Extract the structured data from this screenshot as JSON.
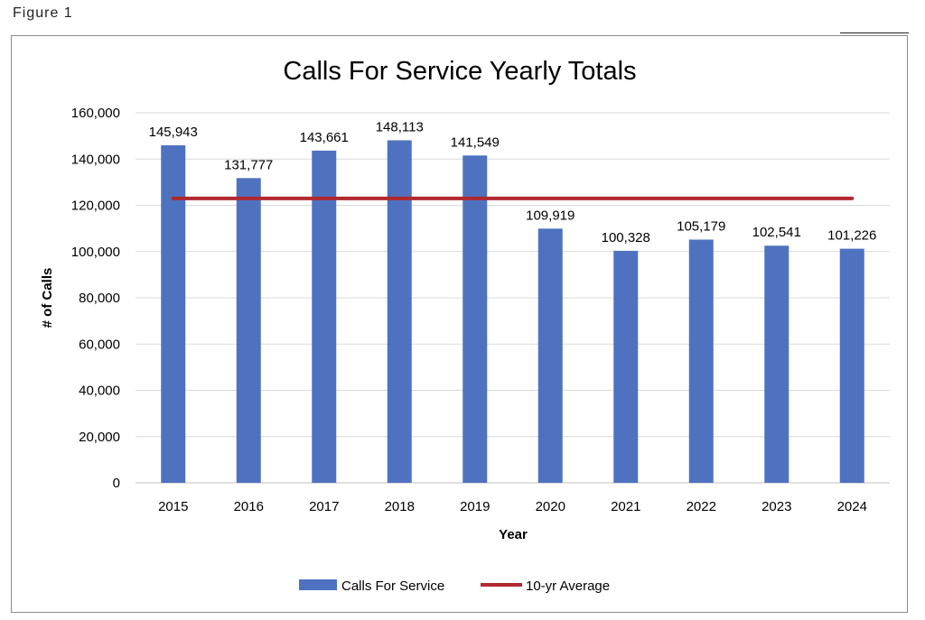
{
  "figure_label": "Figure 1",
  "chart_data": {
    "type": "bar",
    "title": "Calls For Service Yearly Totals",
    "xlabel": "Year",
    "ylabel": "# of Calls",
    "categories": [
      "2015",
      "2016",
      "2017",
      "2018",
      "2019",
      "2020",
      "2021",
      "2022",
      "2023",
      "2024"
    ],
    "series": [
      {
        "name": "Calls For Service",
        "type": "bar",
        "color": "#4F72C0",
        "values": [
          145943,
          131777,
          143661,
          148113,
          141549,
          109919,
          100328,
          105179,
          102541,
          101226
        ],
        "data_labels": [
          "145,943",
          "131,777",
          "143,661",
          "148,113",
          "141,549",
          "109,919",
          "100,328",
          "105,179",
          "102,541",
          "101,226"
        ]
      },
      {
        "name": "10-yr Average",
        "type": "line",
        "color": "#B2282E",
        "values": [
          123000,
          123000,
          123000,
          123000,
          123000,
          123000,
          123000,
          123000,
          123000,
          123000
        ]
      }
    ],
    "ylim": [
      0,
      160000
    ],
    "yticks": [
      0,
      20000,
      40000,
      60000,
      80000,
      100000,
      120000,
      140000,
      160000
    ],
    "ytick_labels": [
      "0",
      "20,000",
      "40,000",
      "60,000",
      "80,000",
      "100,000",
      "120,000",
      "140,000",
      "160,000"
    ],
    "grid": true,
    "legend_position": "bottom"
  }
}
